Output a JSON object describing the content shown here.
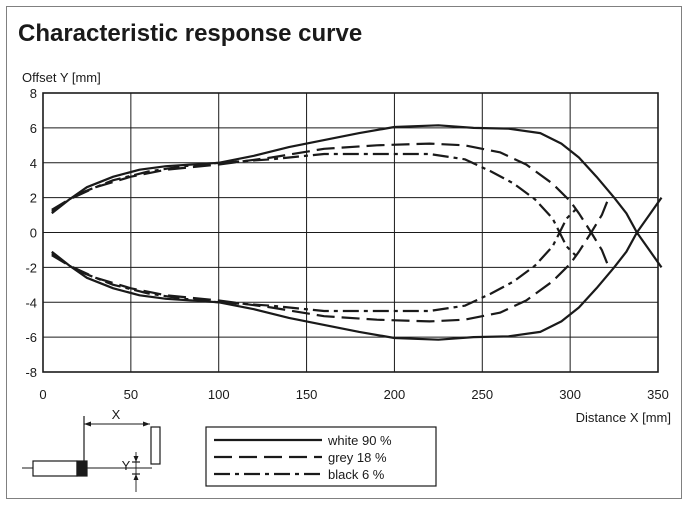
{
  "chart_data": {
    "type": "line",
    "title": "Characteristic response curve",
    "xlabel": "Distance X [mm]",
    "ylabel": "Offset Y [mm]",
    "xlim": [
      0,
      350
    ],
    "ylim": [
      -8,
      8
    ],
    "xticks": [
      0,
      50,
      100,
      150,
      200,
      250,
      300,
      350
    ],
    "yticks": [
      -8,
      -6,
      -4,
      -2,
      0,
      2,
      4,
      6,
      8
    ],
    "grid": true,
    "legend_position": "bottom-center",
    "series": [
      {
        "name": "white 90 %",
        "style": "solid",
        "upper": [
          [
            5,
            1.1
          ],
          [
            15,
            1.9
          ],
          [
            25,
            2.6
          ],
          [
            40,
            3.2
          ],
          [
            55,
            3.6
          ],
          [
            70,
            3.8
          ],
          [
            85,
            3.9
          ],
          [
            100,
            4
          ],
          [
            120,
            4.4
          ],
          [
            140,
            4.9
          ],
          [
            160,
            5.3
          ],
          [
            180,
            5.7
          ],
          [
            200,
            6.05
          ],
          [
            225,
            6.15
          ],
          [
            245,
            6
          ],
          [
            265,
            5.95
          ],
          [
            283,
            5.7
          ],
          [
            295,
            5.1
          ],
          [
            305,
            4.3
          ],
          [
            315,
            3.2
          ],
          [
            325,
            2
          ],
          [
            332,
            1.1
          ],
          [
            338,
            0
          ],
          [
            345,
            1
          ],
          [
            352,
            2
          ]
        ],
        "lower": [
          [
            5,
            -1.1
          ],
          [
            15,
            -1.9
          ],
          [
            25,
            -2.6
          ],
          [
            40,
            -3.2
          ],
          [
            55,
            -3.6
          ],
          [
            70,
            -3.8
          ],
          [
            85,
            -3.9
          ],
          [
            100,
            -4
          ],
          [
            120,
            -4.4
          ],
          [
            140,
            -4.9
          ],
          [
            160,
            -5.3
          ],
          [
            180,
            -5.7
          ],
          [
            200,
            -6.05
          ],
          [
            225,
            -6.15
          ],
          [
            245,
            -6
          ],
          [
            265,
            -5.95
          ],
          [
            283,
            -5.7
          ],
          [
            295,
            -5.1
          ],
          [
            305,
            -4.3
          ],
          [
            315,
            -3.2
          ],
          [
            325,
            -2
          ],
          [
            332,
            -1.1
          ],
          [
            338,
            0
          ],
          [
            345,
            -1
          ],
          [
            352,
            -2
          ]
        ]
      },
      {
        "name": "grey 18 %",
        "style": "dashed",
        "upper": [
          [
            5,
            1.2
          ],
          [
            15,
            1.9
          ],
          [
            30,
            2.6
          ],
          [
            50,
            3.2
          ],
          [
            70,
            3.6
          ],
          [
            100,
            3.9
          ],
          [
            130,
            4.3
          ],
          [
            160,
            4.8
          ],
          [
            190,
            5
          ],
          [
            220,
            5.1
          ],
          [
            240,
            5
          ],
          [
            260,
            4.6
          ],
          [
            275,
            3.9
          ],
          [
            290,
            2.8
          ],
          [
            300,
            1.8
          ],
          [
            305,
            1.1
          ],
          [
            312,
            0
          ],
          [
            318,
            -1
          ],
          [
            322,
            -2
          ]
        ],
        "lower": [
          [
            5,
            -1.2
          ],
          [
            15,
            -1.9
          ],
          [
            30,
            -2.6
          ],
          [
            50,
            -3.2
          ],
          [
            70,
            -3.6
          ],
          [
            100,
            -3.9
          ],
          [
            130,
            -4.3
          ],
          [
            160,
            -4.8
          ],
          [
            190,
            -5
          ],
          [
            220,
            -5.1
          ],
          [
            240,
            -5
          ],
          [
            260,
            -4.6
          ],
          [
            275,
            -3.9
          ],
          [
            290,
            -2.8
          ],
          [
            300,
            -1.8
          ],
          [
            305,
            -1.1
          ],
          [
            312,
            0
          ],
          [
            318,
            1
          ],
          [
            322,
            2
          ]
        ]
      },
      {
        "name": "black 6 %",
        "style": "dash-dot",
        "upper": [
          [
            5,
            1.3
          ],
          [
            20,
            2.2
          ],
          [
            40,
            3
          ],
          [
            60,
            3.5
          ],
          [
            80,
            3.8
          ],
          [
            100,
            4
          ],
          [
            130,
            4.2
          ],
          [
            160,
            4.5
          ],
          [
            190,
            4.5
          ],
          [
            220,
            4.5
          ],
          [
            240,
            4.2
          ],
          [
            255,
            3.5
          ],
          [
            268,
            2.8
          ],
          [
            280,
            1.9
          ],
          [
            290,
            0.8
          ],
          [
            294,
            0
          ],
          [
            298,
            -0.8
          ],
          [
            303,
            -1.3
          ]
        ],
        "lower": [
          [
            5,
            -1.3
          ],
          [
            20,
            -2.2
          ],
          [
            40,
            -3
          ],
          [
            60,
            -3.5
          ],
          [
            80,
            -3.8
          ],
          [
            100,
            -4
          ],
          [
            130,
            -4.2
          ],
          [
            160,
            -4.5
          ],
          [
            190,
            -4.5
          ],
          [
            220,
            -4.5
          ],
          [
            240,
            -4.2
          ],
          [
            255,
            -3.5
          ],
          [
            268,
            -2.8
          ],
          [
            280,
            -1.9
          ],
          [
            290,
            -0.8
          ],
          [
            294,
            0
          ],
          [
            298,
            0.8
          ],
          [
            303,
            1.3
          ]
        ]
      }
    ],
    "diagram": {
      "x_label": "X",
      "y_label": "Y"
    }
  }
}
